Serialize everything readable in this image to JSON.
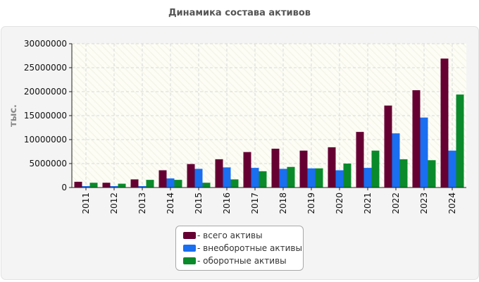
{
  "chart_data": {
    "type": "bar",
    "title": "Динамика состава активов",
    "ylabel": "тыс.",
    "xlabel": "",
    "ylim": [
      0,
      30000000
    ],
    "yticks": [
      0,
      5000000,
      10000000,
      15000000,
      20000000,
      25000000,
      30000000
    ],
    "categories": [
      "2011",
      "2012",
      "2013",
      "2014",
      "2015",
      "2016",
      "2017",
      "2018",
      "2019",
      "2020",
      "2021",
      "2022",
      "2023",
      "2024"
    ],
    "series": [
      {
        "name": "- всего активы",
        "color": "#660033",
        "values": [
          1200000,
          1000000,
          1700000,
          3600000,
          4900000,
          5900000,
          7400000,
          8100000,
          7700000,
          8400000,
          11600000,
          17100000,
          20300000,
          26900000
        ]
      },
      {
        "name": "- внеоборотные активы",
        "color": "#1a6ef0",
        "values": [
          300000,
          300000,
          300000,
          1900000,
          3900000,
          4200000,
          4100000,
          3900000,
          4000000,
          3600000,
          4100000,
          11300000,
          14600000,
          7700000
        ]
      },
      {
        "name": "- оборотные активы",
        "color": "#0a8a2a",
        "values": [
          1000000,
          800000,
          1600000,
          1600000,
          1000000,
          1700000,
          3400000,
          4300000,
          4000000,
          5000000,
          7700000,
          5900000,
          5700000,
          19400000
        ]
      }
    ],
    "legend_position": "bottom",
    "grid": true
  }
}
